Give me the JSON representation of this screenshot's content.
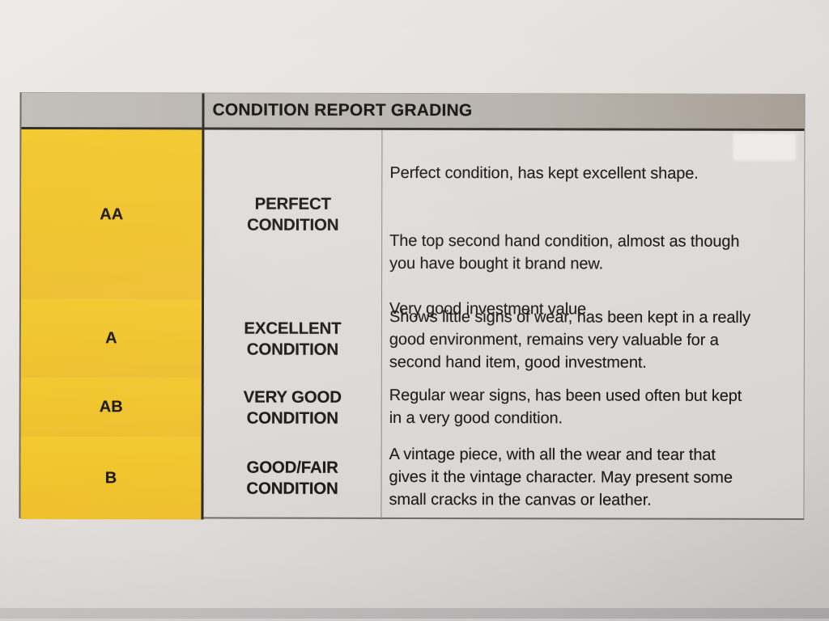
{
  "document": {
    "title": "CONDITION REPORT GRADING",
    "colors": {
      "grade_column_yellow": "#F0C52D",
      "header_gray": "#BBB6AF",
      "paper": "#DEDBD8",
      "text": "#1A1819"
    },
    "table": {
      "header": "CONDITION REPORT GRADING",
      "rows": [
        {
          "grade": "AA",
          "condition": "PERFECT\nCONDITION",
          "description": "Perfect condition, has kept excellent shape.\n\n\nThe top second hand condition, almost as though\nyou have bought it brand new.\n\nVery good investment value"
        },
        {
          "grade": "A",
          "condition": "EXCELLENT\nCONDITION",
          "description": "Shows little signs of wear, has been kept in a really\ngood environment, remains very valuable for a\nsecond hand item, good investment."
        },
        {
          "grade": "AB",
          "condition": "VERY GOOD\nCONDITION",
          "description": "Regular wear signs, has been used often but kept\nin a very good condition."
        },
        {
          "grade": "B",
          "condition": "GOOD/FAIR\nCONDITION",
          "description": "A vintage piece, with all the wear and tear that\ngives it the vintage character. May present some\nsmall cracks in the canvas or leather."
        }
      ]
    }
  }
}
